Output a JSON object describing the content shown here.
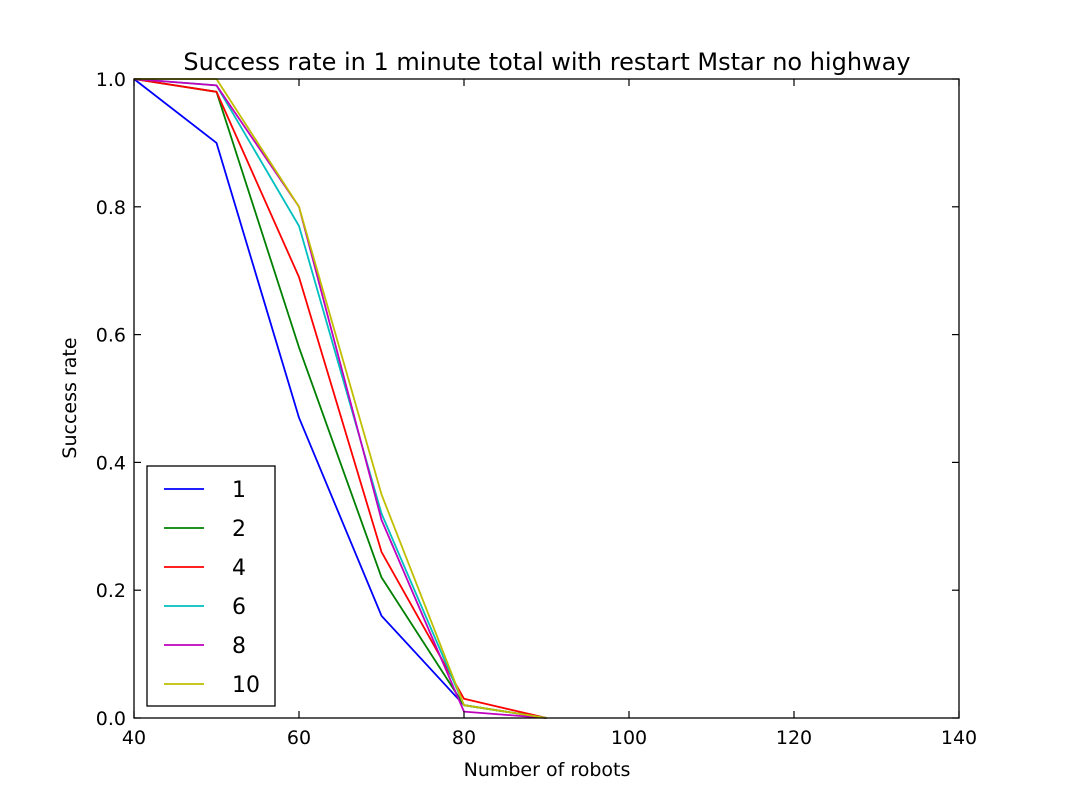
{
  "chart_data": {
    "type": "line",
    "title": "Success rate in 1 minute total with restart Mstar no highway",
    "xlabel": "Number of robots",
    "ylabel": "Success rate",
    "xlim": [
      40,
      140
    ],
    "ylim": [
      0.0,
      1.0
    ],
    "xticks": [
      40,
      60,
      80,
      100,
      120,
      140
    ],
    "yticks": [
      0.0,
      0.2,
      0.4,
      0.6,
      0.8,
      1.0
    ],
    "xtick_labels": [
      "40",
      "60",
      "80",
      "100",
      "120",
      "140"
    ],
    "ytick_labels": [
      "0.0",
      "0.2",
      "0.4",
      "0.6",
      "0.8",
      "1.0"
    ],
    "grid": false,
    "legend_position": "lower-left",
    "x": [
      40,
      50,
      60,
      70,
      80,
      90
    ],
    "series": [
      {
        "name": "1",
        "color": "#0000ff",
        "values": [
          1.0,
          0.9,
          0.47,
          0.16,
          0.02,
          0.0
        ]
      },
      {
        "name": "2",
        "color": "#008000",
        "values": [
          1.0,
          0.98,
          0.58,
          0.22,
          0.02,
          0.0
        ]
      },
      {
        "name": "4",
        "color": "#ff0000",
        "values": [
          1.0,
          0.98,
          0.69,
          0.26,
          0.03,
          0.0
        ]
      },
      {
        "name": "6",
        "color": "#00bfbf",
        "values": [
          1.0,
          0.99,
          0.77,
          0.32,
          0.02,
          0.0
        ]
      },
      {
        "name": "8",
        "color": "#bf00bf",
        "values": [
          1.0,
          0.99,
          0.8,
          0.31,
          0.01,
          0.0
        ]
      },
      {
        "name": "10",
        "color": "#bfbf00",
        "values": [
          1.0,
          1.0,
          0.8,
          0.35,
          0.02,
          0.0
        ]
      }
    ]
  }
}
